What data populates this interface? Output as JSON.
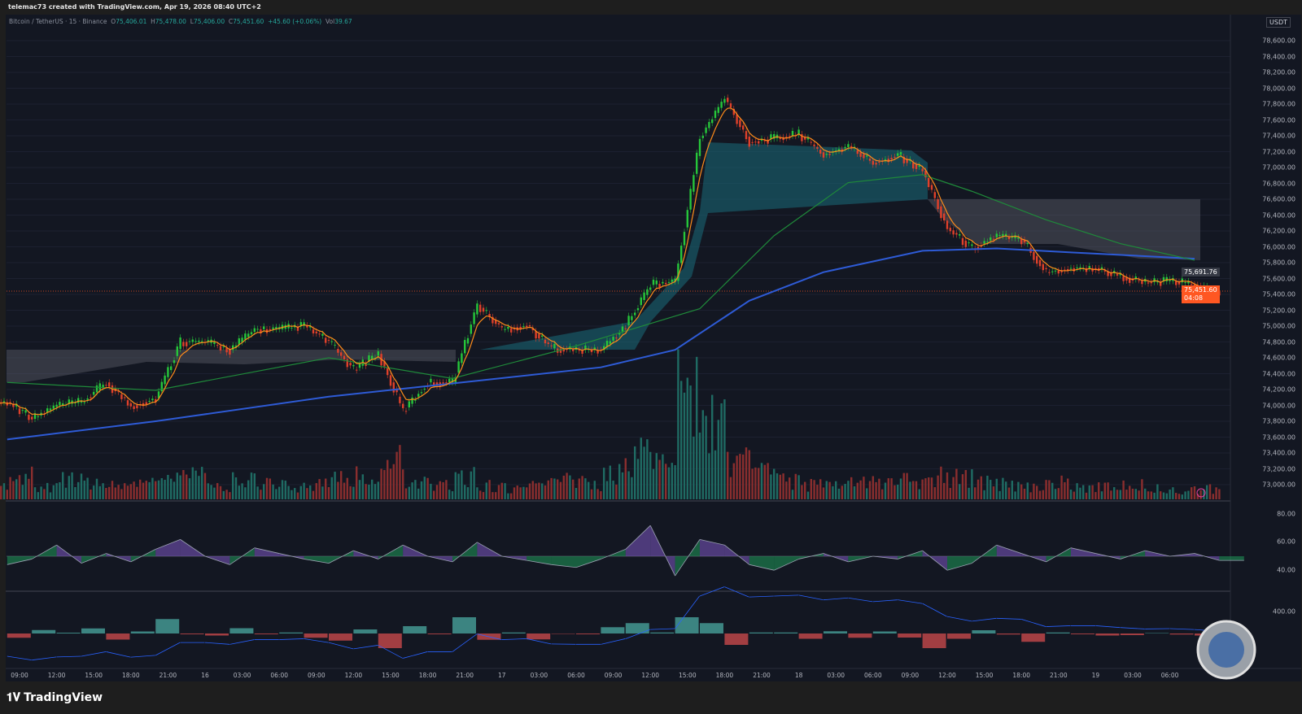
{
  "header": {
    "credit": "telemac73 created with TradingView.com, Apr 19, 2026 08:40 UTC+2"
  },
  "legend": {
    "symbol": "Bitcoin / TetherUS · 15 · Binance",
    "o_label": "O",
    "o": "75,406.01",
    "h_label": "H",
    "h": "75,478.00",
    "l_label": "L",
    "l": "75,406.00",
    "c_label": "C",
    "c": "75,451.60",
    "change": "+45.60 (+0.06%)",
    "vol_label": "Vol",
    "vol": "39.67"
  },
  "currency": "USDT",
  "last_price": {
    "value": "75,451.60",
    "countdown": "04:08",
    "color": "#ff5722"
  },
  "marker_price": "75,691.76",
  "brand": "TradingView",
  "rsi_ticks": [
    "80.00",
    "60.00",
    "40.00"
  ],
  "macd_tick": "400.00",
  "colors": {
    "up": "#26c63a",
    "down": "#e0402a",
    "ma_blue": "#2e5bd6",
    "ma_green": "#1f8a3a",
    "ema": "#ff8c1a",
    "rsi_up": "#7e57c2",
    "rsi_down": "#1f9a5a"
  },
  "chart_data": {
    "type": "candlestick",
    "price_axis": {
      "min": 73000,
      "max": 78600,
      "step": 200,
      "ticks": [
        "78,600.00",
        "78,400.00",
        "78,200.00",
        "78,000.00",
        "77,800.00",
        "77,600.00",
        "77,400.00",
        "77,200.00",
        "77,000.00",
        "76,800.00",
        "76,600.00",
        "76,400.00",
        "76,200.00",
        "76,000.00",
        "75,800.00",
        "75,600.00",
        "75,400.00",
        "75,200.00",
        "75,000.00",
        "74,800.00",
        "74,600.00",
        "74,400.00",
        "74,200.00",
        "74,000.00",
        "73,800.00",
        "73,600.00",
        "73,400.00",
        "73,200.00",
        "73,000.00"
      ]
    },
    "time_labels": [
      "09:00",
      "12:00",
      "15:00",
      "18:00",
      "21:00",
      "16",
      "03:00",
      "06:00",
      "09:00",
      "12:00",
      "15:00",
      "18:00",
      "21:00",
      "17",
      "03:00",
      "06:00",
      "09:00",
      "12:00",
      "15:00",
      "18:00",
      "21:00",
      "18",
      "03:00",
      "06:00",
      "09:00",
      "12:00",
      "15:00",
      "18:00",
      "21:00",
      "19",
      "03:00",
      "06:00"
    ],
    "closes": {
      "start": "Apr 15 08:00",
      "interval_hours": 2,
      "values": [
        74040,
        73830,
        74000,
        74040,
        74290,
        73990,
        74090,
        74800,
        74800,
        74700,
        74960,
        74960,
        75010,
        74800,
        74450,
        74650,
        73930,
        74290,
        74290,
        75270,
        74960,
        75010,
        74720,
        74700,
        74700,
        75010,
        75520,
        75570,
        77370,
        77880,
        77320,
        77370,
        77420,
        77160,
        77270,
        77060,
        77160,
        76960,
        76240,
        75980,
        76140,
        76090,
        75680,
        75730,
        75730,
        75630,
        75550,
        75570,
        75520,
        75420
      ]
    },
    "ma_blue": {
      "hours": [
        8,
        20,
        34,
        46,
        56,
        62,
        68,
        74,
        82,
        88,
        94,
        104
      ],
      "values": [
        73570,
        73800,
        74110,
        74310,
        74480,
        74700,
        75320,
        75680,
        75950,
        75980,
        75930,
        75850
      ]
    },
    "ma_green": {
      "hours": [
        8,
        20,
        34,
        44,
        54,
        64,
        70,
        76,
        82,
        86,
        92,
        98,
        104
      ],
      "values": [
        74290,
        74190,
        74600,
        74340,
        74750,
        75220,
        76140,
        76810,
        76910,
        76700,
        76340,
        76040,
        75830
      ]
    },
    "volume": [
      20,
      30,
      15,
      25,
      20,
      18,
      22,
      25,
      30,
      15,
      25,
      20,
      18,
      22,
      30,
      35,
      70,
      25,
      20,
      30,
      18,
      15,
      20,
      25,
      22,
      40,
      60,
      45,
      150,
      110,
      50,
      35,
      25,
      20,
      18,
      22,
      20,
      25,
      30,
      28,
      22,
      20,
      18,
      22,
      15,
      18,
      20,
      15,
      12,
      14
    ],
    "rsi": [
      44,
      48,
      58,
      45,
      52,
      46,
      55,
      62,
      50,
      44,
      56,
      52,
      48,
      45,
      54,
      48,
      58,
      50,
      46,
      60,
      50,
      47,
      44,
      42,
      48,
      55,
      72,
      36,
      62,
      58,
      44,
      40,
      48,
      52,
      46,
      50,
      48,
      54,
      40,
      45,
      58,
      52,
      46,
      56,
      52,
      48,
      54,
      50,
      52,
      47
    ]
  }
}
